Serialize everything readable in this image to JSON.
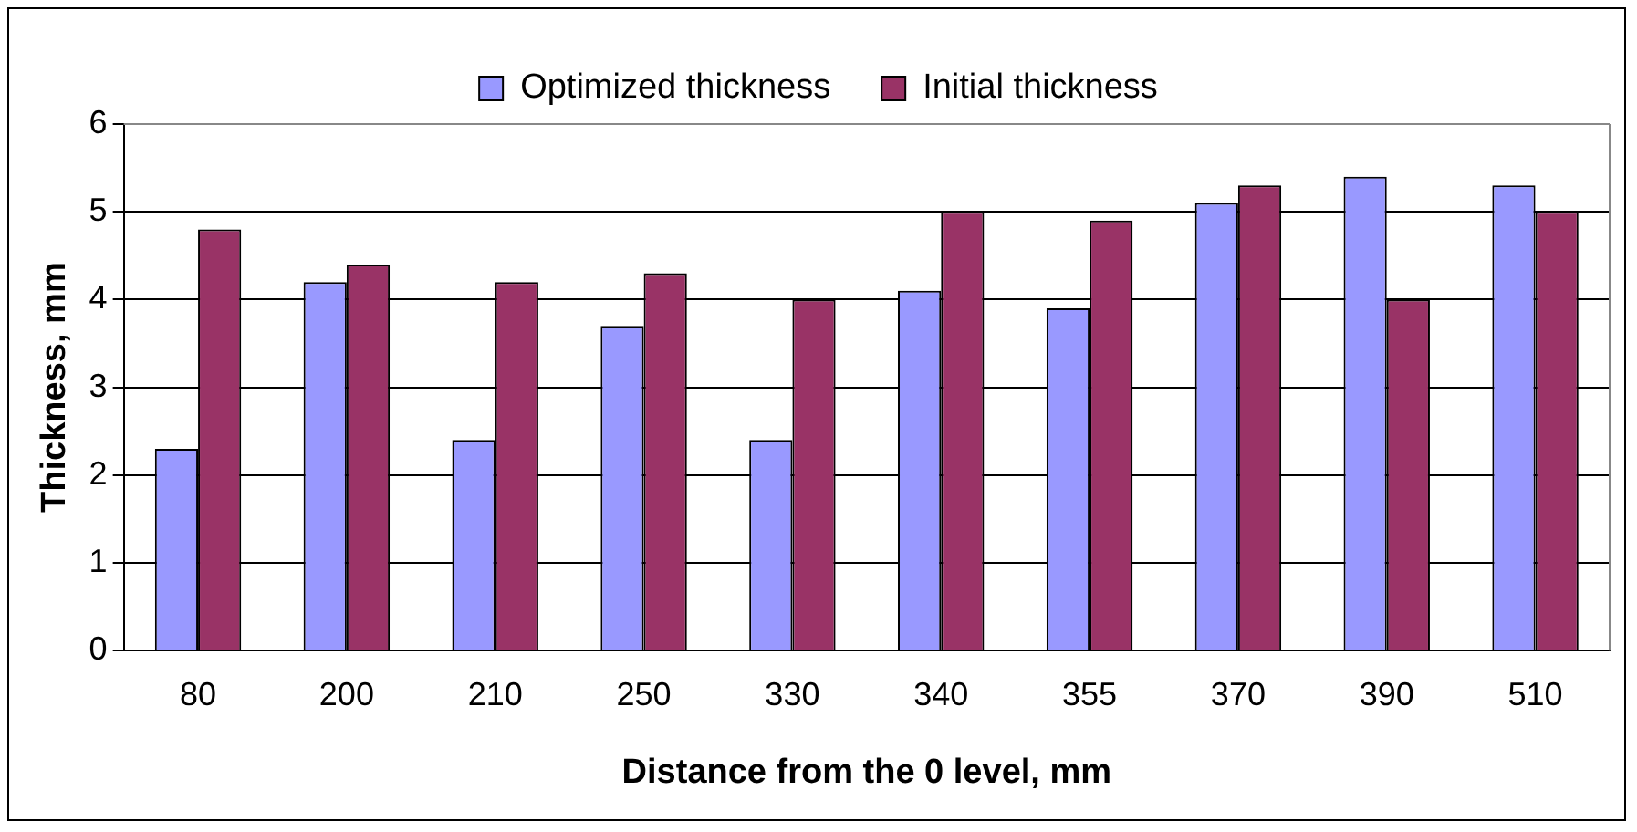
{
  "chart_data": {
    "type": "bar",
    "xlabel": "Distance from the 0 level, mm",
    "ylabel": "Thickness, mm",
    "categories": [
      "80",
      "200",
      "210",
      "250",
      "330",
      "340",
      "355",
      "370",
      "390",
      "510"
    ],
    "series": [
      {
        "name": "Optimized thickness",
        "color": "#9999ff",
        "values": [
          2.3,
          4.2,
          2.4,
          3.7,
          2.4,
          4.1,
          3.9,
          5.1,
          5.4,
          5.3
        ]
      },
      {
        "name": "Initial thickness",
        "color": "#993366",
        "values": [
          4.8,
          4.4,
          4.2,
          4.3,
          4.0,
          5.0,
          4.9,
          5.3,
          4.0,
          5.0
        ]
      }
    ],
    "ylim": [
      0,
      6
    ],
    "yticks": [
      0,
      1,
      2,
      3,
      4,
      5,
      6
    ],
    "grid": "y",
    "legend": "top"
  }
}
